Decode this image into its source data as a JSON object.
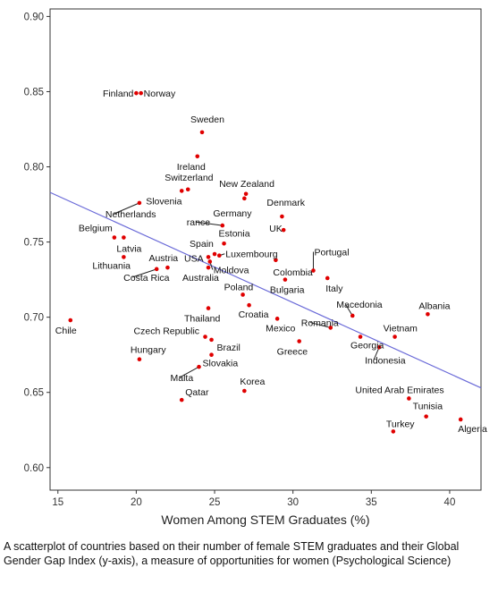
{
  "chart_data": {
    "type": "scatter",
    "xlabel": "Women Among STEM Graduates (%)",
    "ylabel": "",
    "xlim": [
      14.5,
      42
    ],
    "ylim": [
      0.585,
      0.905
    ],
    "x_ticks": [
      15,
      20,
      25,
      30,
      35,
      40
    ],
    "x_tick_labels": [
      "15",
      "20",
      "25",
      "30",
      "35",
      "40"
    ],
    "y_ticks": [
      0.6,
      0.65,
      0.7,
      0.75,
      0.8,
      0.85,
      0.9
    ],
    "y_tick_labels": [
      "0.60",
      "0.65",
      "0.70",
      "0.75",
      "0.80",
      "0.85",
      "0.90"
    ],
    "grid": false,
    "point_color": "#e00000",
    "trend_color": "#6a6ad8",
    "trend_line": {
      "x": [
        14.5,
        42
      ],
      "y": [
        0.783,
        0.653
      ]
    },
    "points": [
      {
        "label": "Finland",
        "x": 20.0,
        "y": 0.849
      },
      {
        "label": "Norway",
        "x": 20.3,
        "y": 0.849
      },
      {
        "label": "Sweden",
        "x": 24.2,
        "y": 0.823
      },
      {
        "label": "Ireland",
        "x": 23.9,
        "y": 0.807
      },
      {
        "label": "Switzerland",
        "x": 23.3,
        "y": 0.785
      },
      {
        "label": "Slovenia",
        "x": 22.9,
        "y": 0.784
      },
      {
        "label": "New Zealand",
        "x": 27.0,
        "y": 0.782
      },
      {
        "label": "Germany",
        "x": 26.9,
        "y": 0.779
      },
      {
        "label": "Netherlands",
        "x": 20.2,
        "y": 0.776
      },
      {
        "label": "Denmark",
        "x": 29.3,
        "y": 0.767
      },
      {
        "label": "rance",
        "x": 25.5,
        "y": 0.761
      },
      {
        "label": "Belgium",
        "x": 18.6,
        "y": 0.753
      },
      {
        "label": "Latvia",
        "x": 19.2,
        "y": 0.753
      },
      {
        "label": "UK",
        "x": 29.4,
        "y": 0.758
      },
      {
        "label": "Estonia",
        "x": 25.6,
        "y": 0.749
      },
      {
        "label": "Spain",
        "x": 25.0,
        "y": 0.742
      },
      {
        "label": "Luxembourg",
        "x": 25.3,
        "y": 0.741
      },
      {
        "label": "USA",
        "x": 24.6,
        "y": 0.74
      },
      {
        "label": "Lithuania",
        "x": 19.2,
        "y": 0.74
      },
      {
        "label": "Moldova",
        "x": 24.7,
        "y": 0.737
      },
      {
        "label": "Portugal",
        "x": 31.3,
        "y": 0.731
      },
      {
        "label": "Austria",
        "x": 22.0,
        "y": 0.733
      },
      {
        "label": "Costa Rica",
        "x": 21.3,
        "y": 0.732
      },
      {
        "label": "Australia",
        "x": 24.6,
        "y": 0.733
      },
      {
        "label": "Colombia",
        "x": 28.9,
        "y": 0.738
      },
      {
        "label": "Italy",
        "x": 32.2,
        "y": 0.726
      },
      {
        "label": "Bulgaria",
        "x": 29.5,
        "y": 0.725
      },
      {
        "label": "Poland",
        "x": 26.8,
        "y": 0.715
      },
      {
        "label": "Macedonia",
        "x": 33.8,
        "y": 0.701
      },
      {
        "label": "Albania",
        "x": 38.6,
        "y": 0.702
      },
      {
        "label": "Chile",
        "x": 15.8,
        "y": 0.698
      },
      {
        "label": "Thailand",
        "x": 24.6,
        "y": 0.706
      },
      {
        "label": "Croatia",
        "x": 27.2,
        "y": 0.708
      },
      {
        "label": "Mexico",
        "x": 29.0,
        "y": 0.699
      },
      {
        "label": "Romania",
        "x": 32.4,
        "y": 0.693
      },
      {
        "label": "Vietnam",
        "x": 36.5,
        "y": 0.687
      },
      {
        "label": "Czech Republic",
        "x": 24.4,
        "y": 0.687
      },
      {
        "label": "Greece",
        "x": 30.4,
        "y": 0.684
      },
      {
        "label": "Georgia",
        "x": 34.3,
        "y": 0.687
      },
      {
        "label": "Brazil",
        "x": 24.8,
        "y": 0.685
      },
      {
        "label": "Indonesia",
        "x": 35.5,
        "y": 0.68
      },
      {
        "label": "Hungary",
        "x": 20.2,
        "y": 0.672
      },
      {
        "label": "Slovakia",
        "x": 24.8,
        "y": 0.675
      },
      {
        "label": "Malta",
        "x": 24.0,
        "y": 0.667
      },
      {
        "label": "Korea",
        "x": 26.9,
        "y": 0.651
      },
      {
        "label": "Qatar",
        "x": 22.9,
        "y": 0.645
      },
      {
        "label": "United Arab Emirates",
        "x": 37.4,
        "y": 0.646
      },
      {
        "label": "Tunisia",
        "x": 38.5,
        "y": 0.634
      },
      {
        "label": "Turkey",
        "x": 36.4,
        "y": 0.624
      },
      {
        "label": "Algeria",
        "x": 40.7,
        "y": 0.632
      }
    ]
  },
  "caption": "A scatterplot of countries based on their number of female STEM graduates and their Global Gender Gap Index (y-axis), a measure of opportunities for women (Psychological Science)"
}
